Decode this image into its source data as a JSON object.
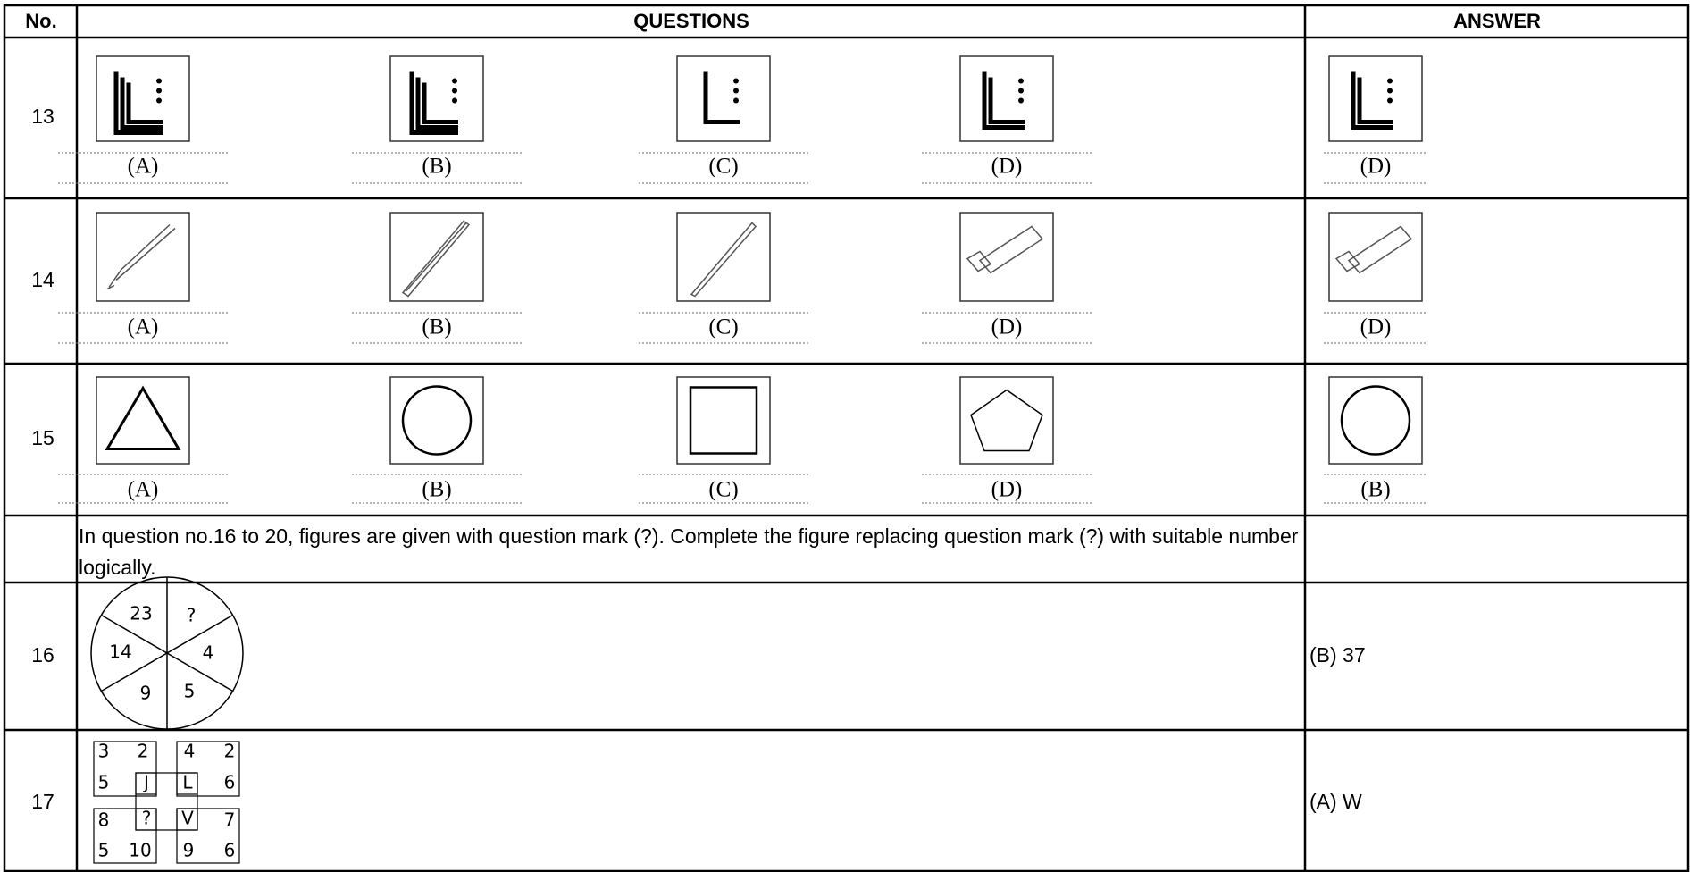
{
  "table": {
    "headers": [
      "No.",
      "QUESTIONS",
      "ANSWER"
    ],
    "rows": [
      {
        "no": "13",
        "options": [
          "(A)",
          "(B)",
          "(C)",
          "(D)"
        ],
        "answer": "(D)"
      },
      {
        "no": "14",
        "options": [
          "(A)",
          "(B)",
          "(C)",
          "(D)"
        ],
        "answer": "(D)"
      },
      {
        "no": "15",
        "options": [
          "(A)",
          "(B)",
          "(C)",
          "(D)"
        ],
        "answer": "(B)"
      },
      {
        "text": "In question no.16 to 20, figures are given with question mark (?). Complete the figure replacing question mark (?) with suitable number logically."
      },
      {
        "no": "16",
        "figure": [
          "23",
          "?",
          "14",
          "4",
          "9",
          "5"
        ],
        "answer": "(B) 37"
      },
      {
        "no": "17",
        "figure": [
          "3",
          "2",
          "5",
          "J",
          "4",
          "2",
          "L",
          "6",
          "8",
          "?",
          "5",
          "10",
          "V",
          "7",
          "9",
          "6"
        ],
        "answer": "(A) W"
      }
    ]
  }
}
